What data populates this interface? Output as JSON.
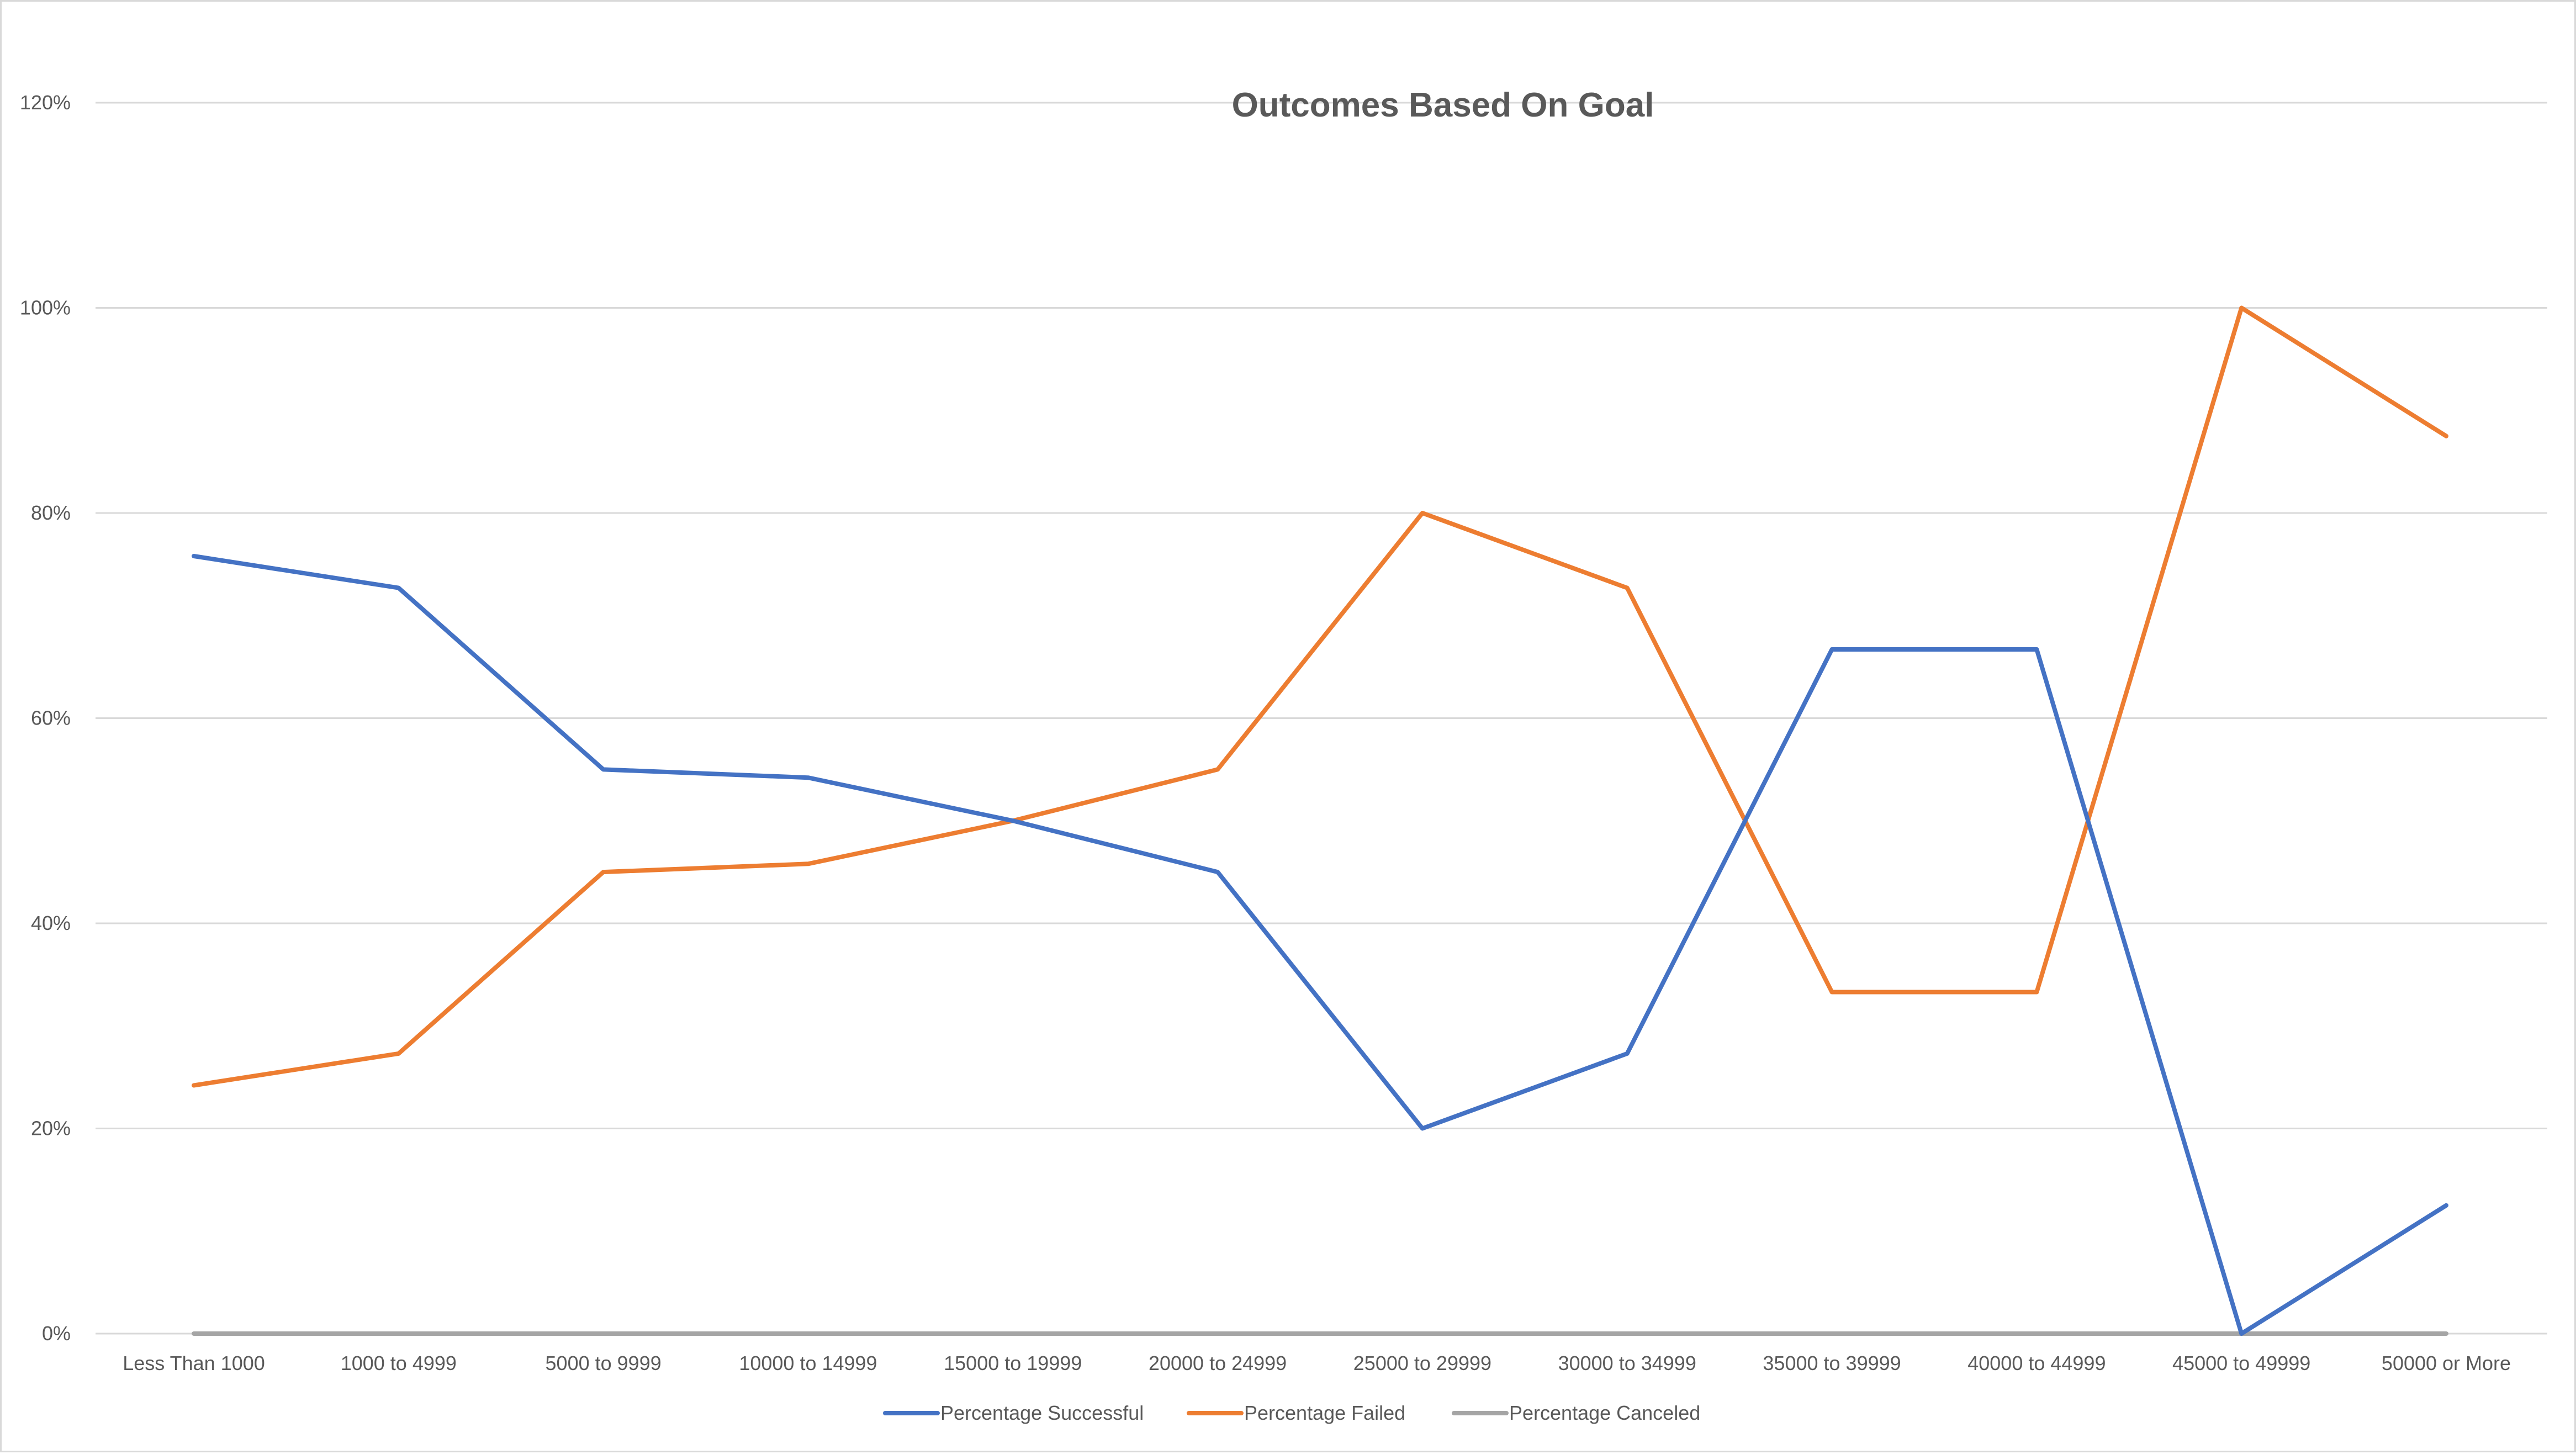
{
  "chart_data": {
    "type": "line",
    "title": "Outcomes Based On Goal",
    "xlabel": "",
    "ylabel": "",
    "categories": [
      "Less Than 1000",
      "1000 to 4999",
      "5000 to 9999",
      "10000 to 14999",
      "15000 to 19999",
      "20000 to 24999",
      "25000 to 29999",
      "30000 to 34999",
      "35000 to 39999",
      "40000 to 44999",
      "45000 to 49999",
      "50000 or More"
    ],
    "yticks": [
      "0%",
      "20%",
      "40%",
      "60%",
      "80%",
      "100%",
      "120%"
    ],
    "ylim": [
      0,
      120
    ],
    "grid": true,
    "legend_position": "bottom",
    "series": [
      {
        "name": "Percentage Successful",
        "color": "#4472c4",
        "values": [
          75.8,
          72.7,
          55.0,
          54.2,
          50.0,
          45.0,
          20.0,
          27.3,
          66.7,
          66.7,
          0.0,
          12.5
        ]
      },
      {
        "name": "Percentage Failed",
        "color": "#ed7d31",
        "values": [
          24.2,
          27.3,
          45.0,
          45.8,
          50.0,
          55.0,
          80.0,
          72.7,
          33.3,
          33.3,
          100.0,
          87.5
        ]
      },
      {
        "name": "Percentage Canceled",
        "color": "#a5a5a5",
        "values": [
          0,
          0,
          0,
          0,
          0,
          0,
          0,
          0,
          0,
          0,
          0,
          0
        ]
      }
    ]
  }
}
